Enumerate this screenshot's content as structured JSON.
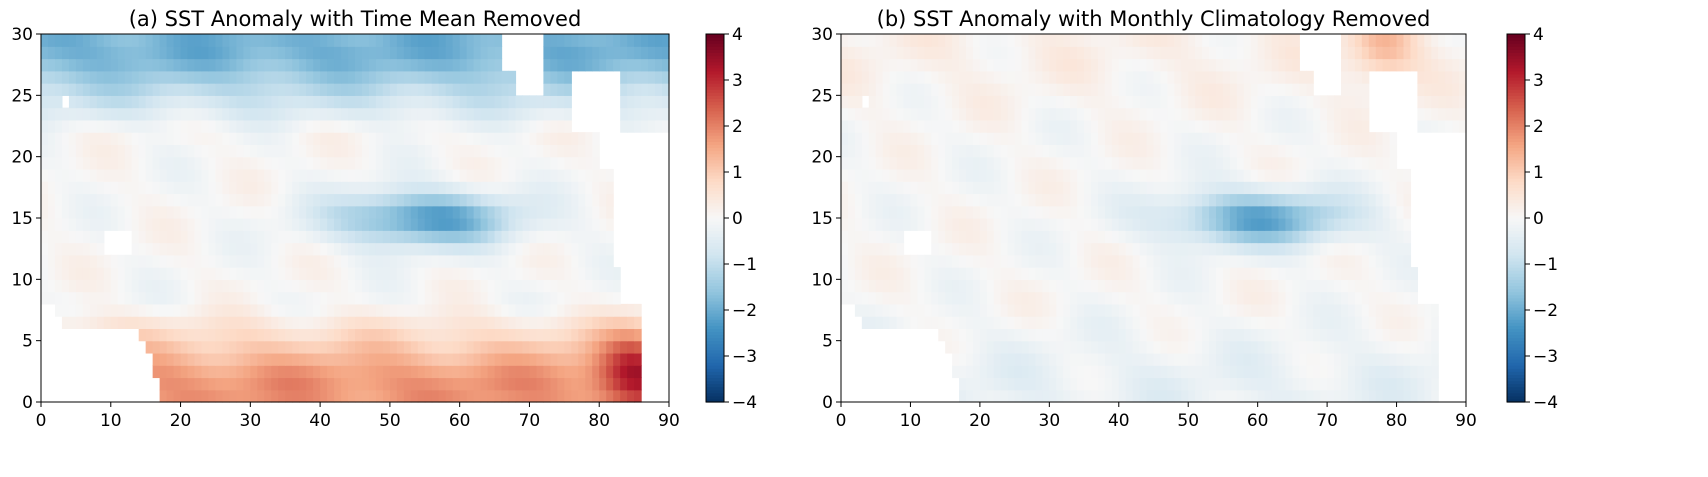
{
  "chart_data": [
    {
      "type": "heatmap",
      "title": "(a) SST Anomaly with Time Mean Removed",
      "xlabel": "",
      "ylabel": "",
      "xlim": [
        0,
        90
      ],
      "ylim": [
        0,
        30
      ],
      "xticks": [
        "0",
        "10",
        "20",
        "30",
        "40",
        "50",
        "60",
        "70",
        "80",
        "90"
      ],
      "yticks": [
        "0",
        "5",
        "10",
        "15",
        "20",
        "25",
        "30"
      ],
      "colorbar": {
        "colormap": "RdBu_r",
        "range": [
          -4,
          4
        ],
        "ticks": [
          "−4",
          "−3",
          "−2",
          "−1",
          "0",
          "1",
          "2",
          "3",
          "4"
        ]
      },
      "anomaly_structure": {
        "north_band_y_24_30": -1.9,
        "central_minimum_at": {
          "x": 55,
          "y": 15,
          "value": -2.3
        },
        "south_band_y_0_6": 1.8,
        "southeast_maximum_at": {
          "x": 85,
          "y": 3,
          "value": 2.9
        },
        "x_offset_of_central_minimum": 0
      }
    },
    {
      "type": "heatmap",
      "title": "(b) SST Anomaly with Monthly Climatology Removed",
      "xlabel": "",
      "ylabel": "",
      "xlim": [
        0,
        90
      ],
      "ylim": [
        0,
        30
      ],
      "xticks": [
        "0",
        "10",
        "20",
        "30",
        "40",
        "50",
        "60",
        "70",
        "80",
        "90"
      ],
      "yticks": [
        "0",
        "5",
        "10",
        "15",
        "20",
        "25",
        "30"
      ],
      "colorbar": {
        "colormap": "RdBu_r",
        "range": [
          -4,
          4
        ],
        "ticks": [
          "−4",
          "−3",
          "−2",
          "−1",
          "0",
          "1",
          "2",
          "3",
          "4"
        ]
      },
      "anomaly_structure": {
        "north_band_y_24_30": 0.2,
        "central_minimum_at": {
          "x": 60,
          "y": 15,
          "value": -2.1
        },
        "south_band_y_0_6": -0.3,
        "southeast_maximum_at": {
          "x": 78,
          "y": 29,
          "value": 1.9
        },
        "x_offset_of_central_minimum": 5
      }
    }
  ]
}
